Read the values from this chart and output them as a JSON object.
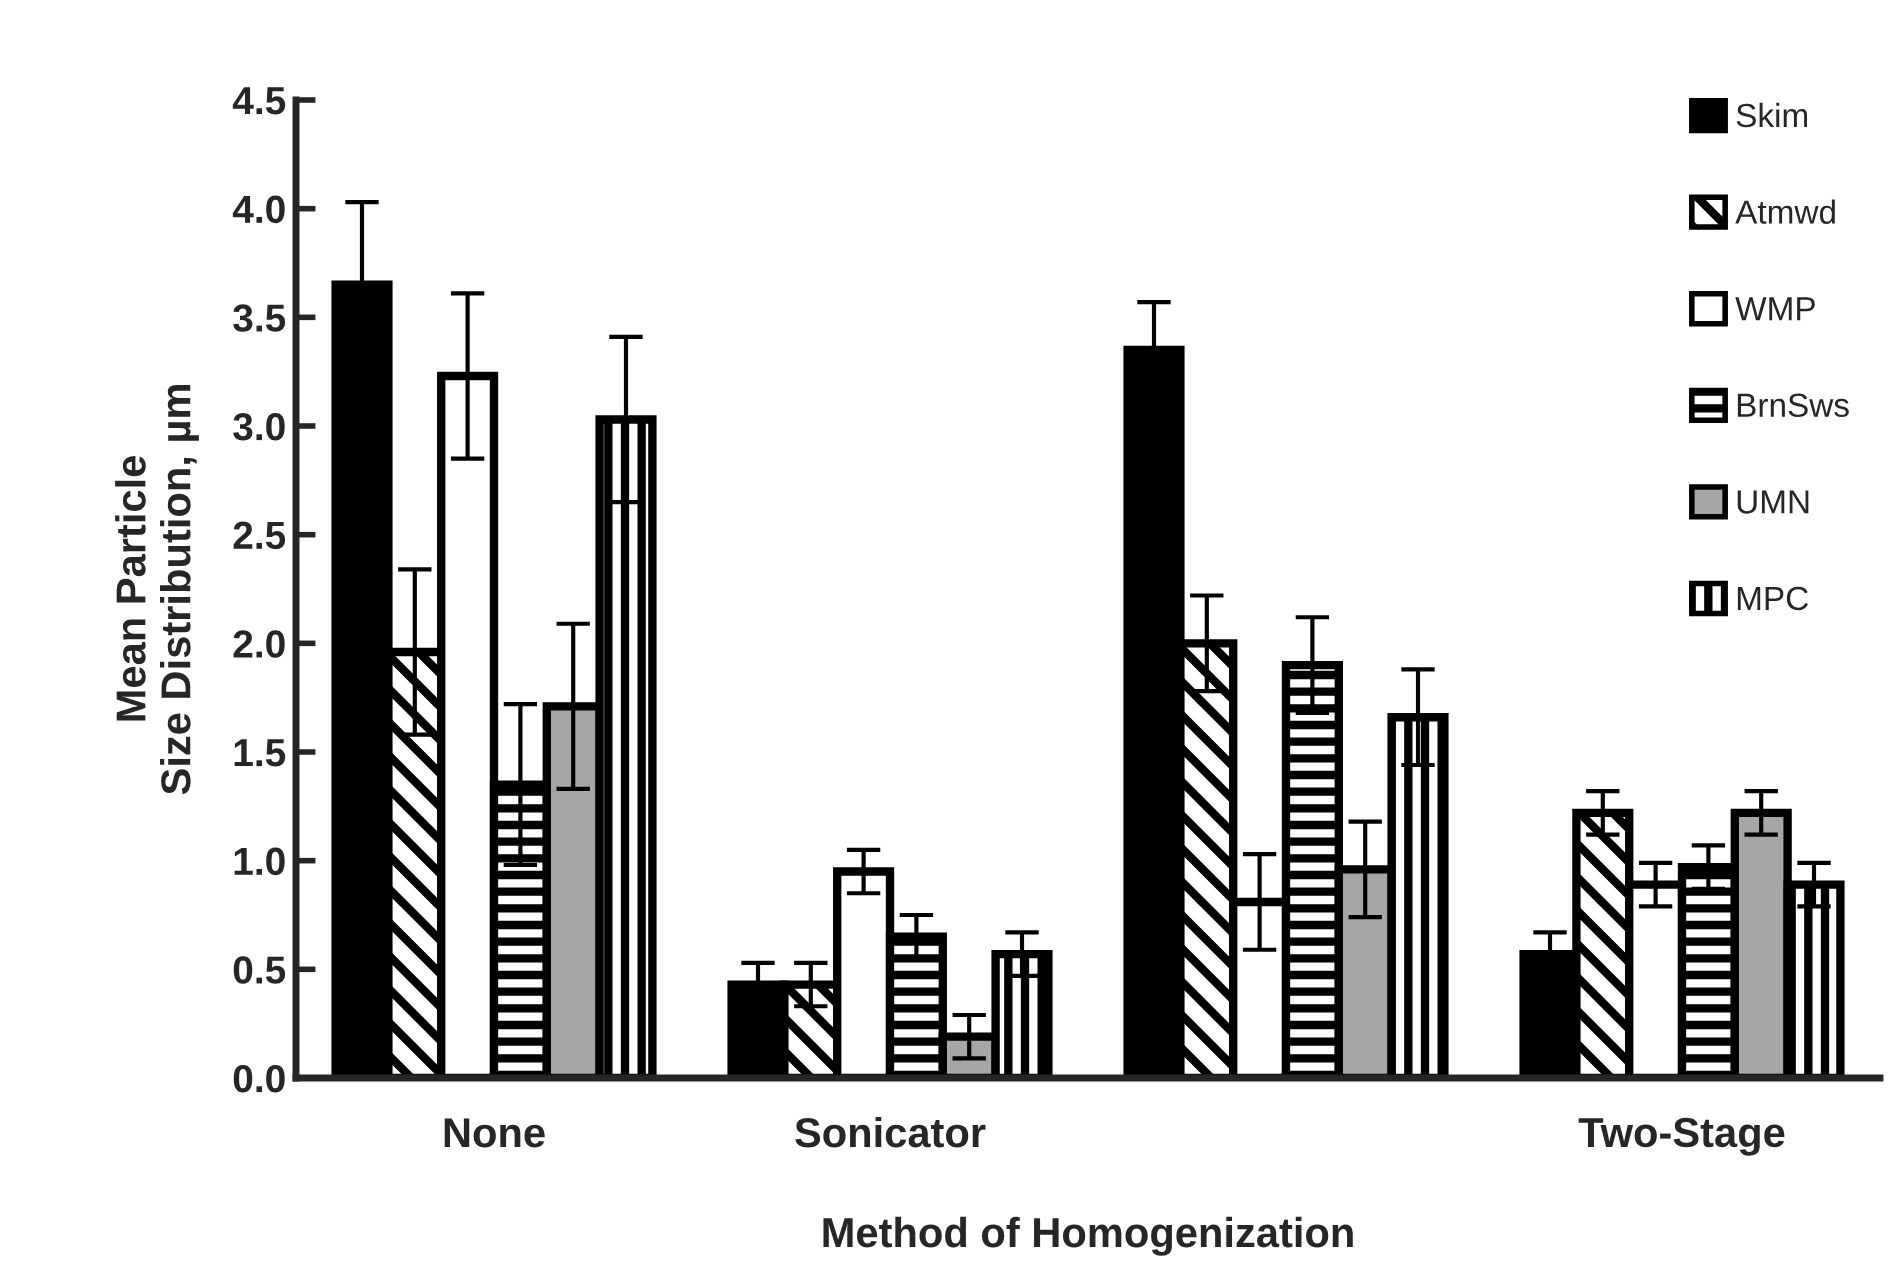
{
  "chart_data": {
    "type": "bar",
    "xlabel": "Method of Homogenization",
    "ylabel": "Mean Particle\nSize Distribution, µm",
    "categories": [
      "None",
      "Sonicator",
      null,
      "Two-Stage"
    ],
    "series": [
      {
        "name": "Skim",
        "color": "#000000",
        "values": [
          3.65,
          0.43,
          3.35,
          0.57
        ],
        "errors": [
          0.38,
          0.1,
          0.22,
          0.1
        ]
      },
      {
        "name": "Atmwd",
        "color": "#000000",
        "values": [
          1.96,
          0.43,
          2.0,
          1.22
        ],
        "errors": [
          0.38,
          0.1,
          0.22,
          0.1
        ]
      },
      {
        "name": "WMP",
        "color": "#ffffff",
        "values": [
          3.23,
          0.95,
          0.81,
          0.89
        ],
        "errors": [
          0.38,
          0.1,
          0.22,
          0.1
        ]
      },
      {
        "name": "BrnSws",
        "color": "#000000",
        "values": [
          1.35,
          0.65,
          1.9,
          0.97
        ],
        "errors": [
          0.37,
          0.1,
          0.22,
          0.1
        ]
      },
      {
        "name": "UMN",
        "color": "#a6a6a6",
        "values": [
          1.71,
          0.19,
          0.96,
          1.22
        ],
        "errors": [
          0.38,
          0.1,
          0.22,
          0.1
        ]
      },
      {
        "name": "MPC",
        "color": "#000000",
        "values": [
          3.03,
          0.57,
          1.66,
          0.89
        ],
        "errors": [
          0.38,
          0.1,
          0.22,
          0.1
        ]
      }
    ],
    "ylim": [
      0,
      4.5
    ],
    "yticks": [
      {
        "value": 0,
        "label": "0.0"
      },
      {
        "value": 0.5,
        "label": "0.5"
      },
      {
        "value": 1,
        "label": "1.0"
      },
      {
        "value": 1.5,
        "label": "1.5"
      },
      {
        "value": 2,
        "label": "2.0"
      },
      {
        "value": 2.5,
        "label": "2.5"
      },
      {
        "value": 3,
        "label": "3.0"
      },
      {
        "value": 3.5,
        "label": "3.5"
      },
      {
        "value": 4,
        "label": "4.0"
      },
      {
        "value": 4.5,
        "label": "4.5"
      }
    ],
    "grid": false,
    "legend": "top right"
  }
}
